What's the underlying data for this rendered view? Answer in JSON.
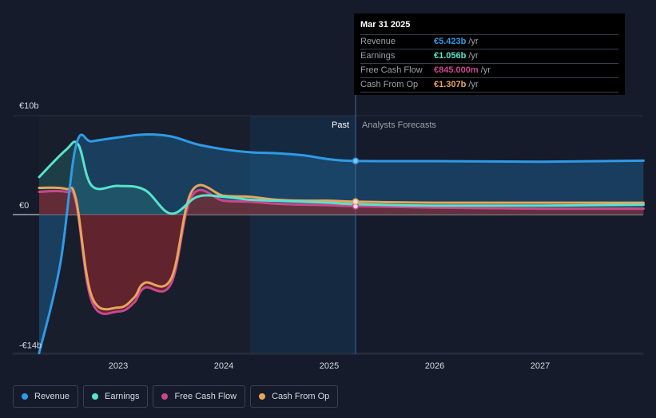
{
  "chart_data": {
    "type": "line",
    "y_ticks": [
      {
        "value": 10,
        "label": "€10b"
      },
      {
        "value": 0,
        "label": "€0"
      },
      {
        "value": -14,
        "label": "-€14b"
      }
    ],
    "x_ticks": [
      {
        "value": 2023,
        "label": "2023"
      },
      {
        "value": 2024,
        "label": "2024"
      },
      {
        "value": 2025,
        "label": "2025"
      },
      {
        "value": 2026,
        "label": "2026"
      },
      {
        "value": 2027,
        "label": "2027"
      }
    ],
    "xlim": [
      2022.0,
      2027.98
    ],
    "ylim": [
      -14,
      10
    ],
    "past_label": "Past",
    "forecast_label": "Analysts Forecasts",
    "highlight_range": [
      2024.25,
      2025.25
    ],
    "divider_x": 2025.25,
    "series": [
      {
        "name": "Revenue",
        "color": "#2f9ae6",
        "fill": true,
        "points": [
          [
            2022.25,
            -14
          ],
          [
            2022.45,
            -5
          ],
          [
            2022.6,
            7
          ],
          [
            2022.75,
            7.4
          ],
          [
            2023.0,
            7.8
          ],
          [
            2023.25,
            8.1
          ],
          [
            2023.5,
            7.9
          ],
          [
            2023.75,
            7.1
          ],
          [
            2024.0,
            6.6
          ],
          [
            2024.25,
            6.3
          ],
          [
            2024.5,
            6.2
          ],
          [
            2024.75,
            6.0
          ],
          [
            2025.0,
            5.6
          ],
          [
            2025.25,
            5.423
          ],
          [
            2026.0,
            5.4
          ],
          [
            2027.0,
            5.35
          ],
          [
            2027.98,
            5.45
          ]
        ]
      },
      {
        "name": "Earnings",
        "color": "#58e3cc",
        "fill": true,
        "points": [
          [
            2022.25,
            3.8
          ],
          [
            2022.5,
            6.5
          ],
          [
            2022.62,
            7.1
          ],
          [
            2022.75,
            2.9
          ],
          [
            2023.0,
            2.9
          ],
          [
            2023.25,
            2.5
          ],
          [
            2023.5,
            0.1
          ],
          [
            2023.75,
            1.8
          ],
          [
            2024.0,
            1.8
          ],
          [
            2024.25,
            1.5
          ],
          [
            2024.5,
            1.4
          ],
          [
            2024.75,
            1.3
          ],
          [
            2025.0,
            1.2
          ],
          [
            2025.25,
            1.056
          ],
          [
            2026.0,
            0.9
          ],
          [
            2027.0,
            0.9
          ],
          [
            2027.98,
            1.0
          ]
        ]
      },
      {
        "name": "Free Cash Flow",
        "color": "#c8478e",
        "fill": true,
        "points": [
          [
            2022.25,
            2.3
          ],
          [
            2022.5,
            2.3
          ],
          [
            2022.6,
            1.2
          ],
          [
            2022.75,
            -8.8
          ],
          [
            2023.0,
            -9.8
          ],
          [
            2023.15,
            -8.9
          ],
          [
            2023.25,
            -7.4
          ],
          [
            2023.5,
            -7.0
          ],
          [
            2023.7,
            1.9
          ],
          [
            2024.0,
            1.4
          ],
          [
            2024.25,
            1.3
          ],
          [
            2024.5,
            1.1
          ],
          [
            2024.75,
            1.0
          ],
          [
            2025.0,
            0.95
          ],
          [
            2025.25,
            0.845
          ],
          [
            2026.0,
            0.7
          ],
          [
            2027.0,
            0.6
          ],
          [
            2027.98,
            0.6
          ]
        ]
      },
      {
        "name": "Cash From Op",
        "color": "#e8a55a",
        "fill": false,
        "points": [
          [
            2022.25,
            2.7
          ],
          [
            2022.5,
            2.6
          ],
          [
            2022.6,
            1.5
          ],
          [
            2022.75,
            -8.3
          ],
          [
            2023.0,
            -9.4
          ],
          [
            2023.15,
            -8.4
          ],
          [
            2023.25,
            -6.9
          ],
          [
            2023.5,
            -6.5
          ],
          [
            2023.7,
            2.4
          ],
          [
            2024.0,
            1.9
          ],
          [
            2024.25,
            1.8
          ],
          [
            2024.5,
            1.5
          ],
          [
            2024.75,
            1.4
          ],
          [
            2025.0,
            1.4
          ],
          [
            2025.25,
            1.307
          ],
          [
            2026.0,
            1.2
          ],
          [
            2027.0,
            1.2
          ],
          [
            2027.98,
            1.2
          ]
        ]
      }
    ]
  },
  "tooltip": {
    "date": "Mar 31 2025",
    "rows": [
      {
        "label": "Revenue",
        "value": "€5.423b",
        "unit": "/yr",
        "color": "#2f9ae6"
      },
      {
        "label": "Earnings",
        "value": "€1.056b",
        "unit": "/yr",
        "color": "#58e3cc"
      },
      {
        "label": "Free Cash Flow",
        "value": "€845.000m",
        "unit": "/yr",
        "color": "#c8478e"
      },
      {
        "label": "Cash From Op",
        "value": "€1.307b",
        "unit": "/yr",
        "color": "#e8a55a"
      }
    ]
  },
  "legend": [
    {
      "label": "Revenue",
      "color": "#2f9ae6"
    },
    {
      "label": "Earnings",
      "color": "#58e3cc"
    },
    {
      "label": "Free Cash Flow",
      "color": "#c8478e"
    },
    {
      "label": "Cash From Op",
      "color": "#e8a55a"
    }
  ]
}
